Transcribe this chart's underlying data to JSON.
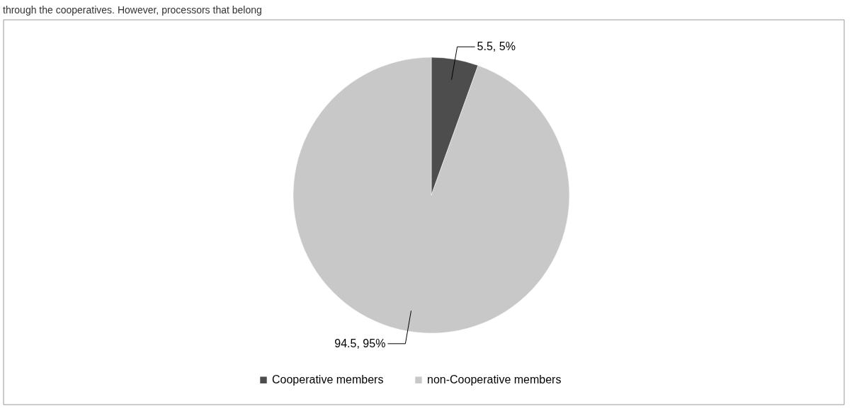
{
  "chart_data": {
    "type": "pie",
    "categories": [
      "Cooperative members",
      "non-Cooperative members"
    ],
    "values": [
      5.5,
      94.5
    ],
    "colors": [
      "#4d4d4d",
      "#c8c8c8"
    ],
    "value_labels": [
      "5.5, 5%",
      "94.5, 95%"
    ],
    "legend": "bottom",
    "annotations": [
      "through the cooperatives. However, processors that belong"
    ]
  }
}
